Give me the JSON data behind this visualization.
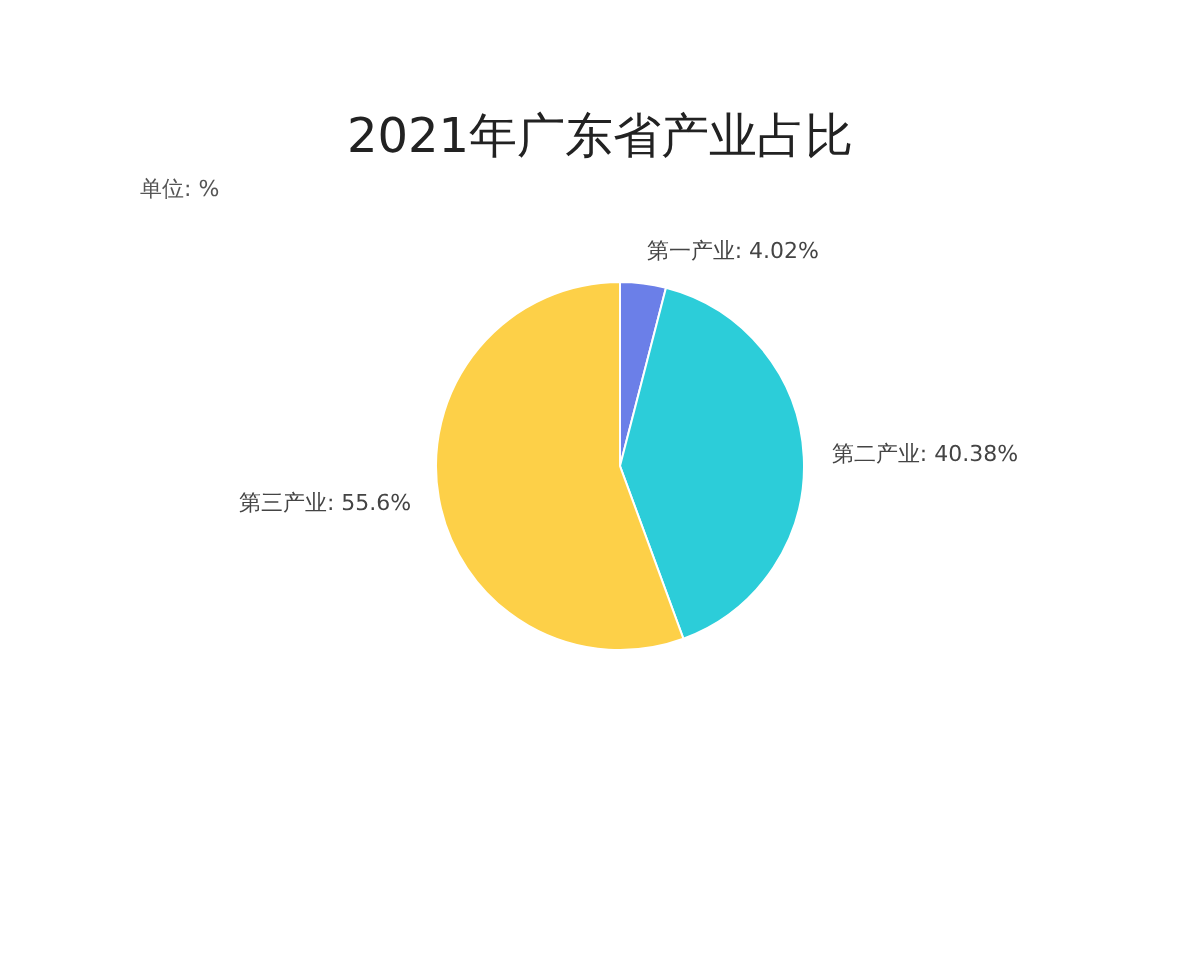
{
  "chart_data": {
    "type": "pie",
    "title": "2021年广东省产业占比",
    "categories": [
      "第一产业",
      "第二产业",
      "第三产业"
    ],
    "values": [
      4.02,
      40.38,
      55.6
    ],
    "colors": [
      "#6b7fe8",
      "#2ccdd9",
      "#fdd048"
    ],
    "value_labels": [
      "4.02%",
      "40.38%",
      "55.6%"
    ],
    "annotations": [
      "单位: %"
    ]
  }
}
